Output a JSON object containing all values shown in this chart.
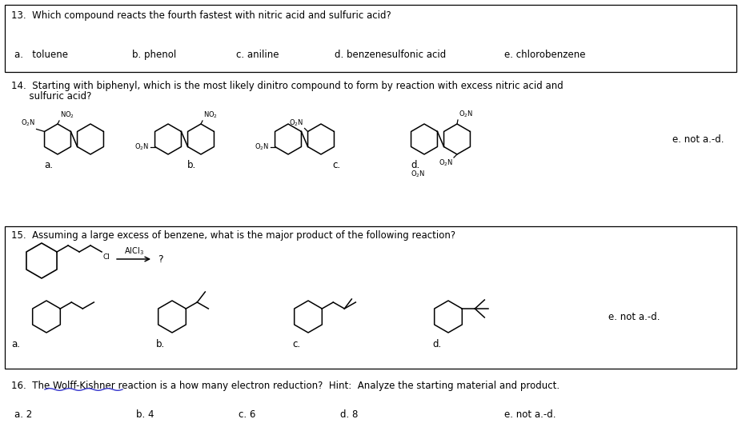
{
  "background_color": "#ffffff",
  "q13_question": "13.  Which compound reacts the fourth fastest with nitric acid and sulfuric acid?",
  "q13_answers": [
    "a.   toluene",
    "b. phenol",
    "c. aniline",
    "d. benzenesulfonic acid",
    "e. chlorobenzene"
  ],
  "q13_ans_x": [
    18,
    165,
    295,
    418,
    630
  ],
  "q14_line1": "14.  Starting with biphenyl, which is the most likely dinitro compound to form by reaction with excess nitric acid and",
  "q14_line2": "      sulfuric acid?",
  "q14_e": "e. not a.-d.",
  "q15_question": "15.  Assuming a large excess of benzene, what is the major product of the following reaction?",
  "q15_e": "e. not a.-d.",
  "q16_question": "16.  The Wolff-Kishner reaction is a how many electron reduction?  Hint:  Analyze the starting material and product.",
  "q16_answers": [
    "a. 2",
    "b. 4",
    "c. 6",
    "d. 8",
    "e. not a.-d."
  ],
  "q16_ans_x": [
    18,
    170,
    298,
    425,
    630
  ],
  "wavy_color": "#3333cc"
}
